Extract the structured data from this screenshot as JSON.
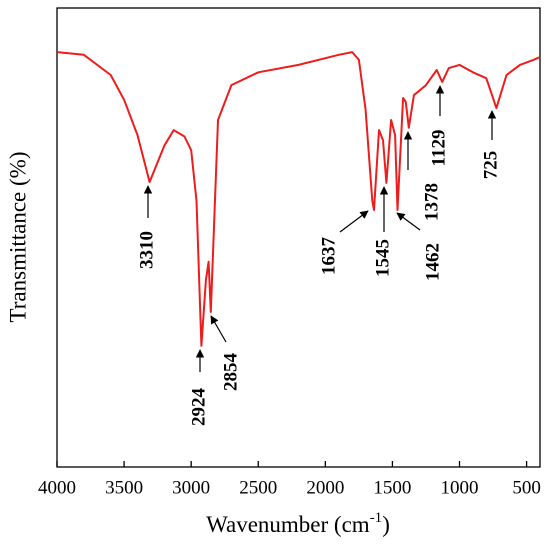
{
  "chart_data": {
    "type": "line",
    "xlabel": [
      "Wavenumber (cm",
      "-1",
      ")"
    ],
    "ylabel": "Transmittance (%)",
    "xlim": [
      4000,
      400
    ],
    "ylim": [
      0,
      100
    ],
    "xticks": [
      4000,
      3500,
      3000,
      2500,
      2000,
      1500,
      1000,
      500
    ],
    "x": [
      4000,
      3800,
      3600,
      3500,
      3400,
      3310,
      3200,
      3130,
      3050,
      3000,
      2960,
      2924,
      2890,
      2870,
      2854,
      2800,
      2700,
      2500,
      2200,
      1900,
      1800,
      1750,
      1700,
      1650,
      1637,
      1600,
      1570,
      1545,
      1510,
      1480,
      1462,
      1420,
      1400,
      1378,
      1340,
      1250,
      1170,
      1129,
      1080,
      1000,
      900,
      800,
      725,
      650,
      550,
      450,
      400
    ],
    "series": [
      {
        "color": "#ee1c1c",
        "values": [
          90.4,
          89.8,
          85.4,
          80,
          72.3,
          62.1,
          70,
          73.4,
          72,
          69,
          58,
          26.4,
          40.7,
          44.7,
          33.8,
          75.6,
          83.2,
          86,
          87.6,
          89.8,
          90.4,
          88.7,
          77.8,
          58,
          56,
          73.4,
          71.2,
          61.9,
          75.6,
          72.3,
          56,
          80.4,
          79.5,
          73.9,
          81,
          83.2,
          86.5,
          83.9,
          86.9,
          87.6,
          86,
          84.7,
          78.2,
          85.4,
          87.6,
          88.7,
          89.3
        ]
      }
    ],
    "annotations": [
      {
        "text": "3310",
        "x": 3310
      },
      {
        "text": "2924",
        "x": 2924
      },
      {
        "text": "2854",
        "x": 2854
      },
      {
        "text": "1637",
        "x": 1637
      },
      {
        "text": "1545",
        "x": 1545
      },
      {
        "text": "1462",
        "x": 1462
      },
      {
        "text": "1378",
        "x": 1378
      },
      {
        "text": "1129",
        "x": 1129
      },
      {
        "text": "725",
        "x": 725
      }
    ]
  }
}
